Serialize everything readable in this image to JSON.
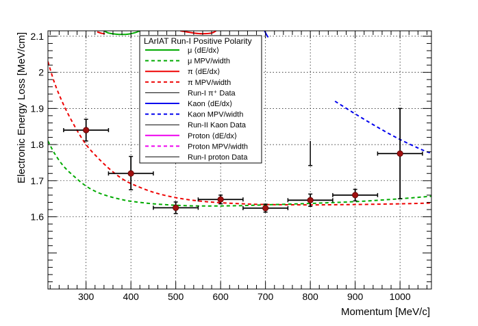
{
  "chart_data": {
    "type": "line",
    "xlabel": "Momentum [MeV/c]",
    "ylabel": "Electronic Energy Loss [MeV/cm]",
    "xlim": [
      215,
      1070
    ],
    "ylim": [
      1.4,
      2.115
    ],
    "xticks": [
      300,
      400,
      500,
      600,
      700,
      800,
      900,
      1000
    ],
    "yticks": [
      1.6,
      1.7,
      1.8,
      1.9,
      2.0,
      2.1
    ],
    "xtick_labels": [
      "300",
      "400",
      "500",
      "600",
      "700",
      "800",
      "900",
      "1000"
    ],
    "ytick_labels": [
      "1.6",
      "1.7",
      "1.8",
      "1.9",
      "2",
      "2.1"
    ],
    "grid": true,
    "legend": {
      "title": "LArIAT Run-I Positive Polarity",
      "position": "top-center",
      "entries": [
        {
          "label": "μ ⟨dE/dx⟩",
          "color": "#00aa00",
          "style": "solid"
        },
        {
          "label": "μ MPV/width",
          "color": "#00aa00",
          "style": "dashed"
        },
        {
          "label": "π ⟨dE/dx⟩",
          "color": "#ee0000",
          "style": "solid"
        },
        {
          "label": "π MPV/width",
          "color": "#ee0000",
          "style": "dashed"
        },
        {
          "label": "Run-I π⁺ Data",
          "color": "#000000",
          "style": "solid"
        },
        {
          "label": "Kaon ⟨dE/dx⟩",
          "color": "#0000ee",
          "style": "solid"
        },
        {
          "label": "Kaon MPV/width",
          "color": "#0000ee",
          "style": "dashed"
        },
        {
          "label": "Run-II Kaon Data",
          "color": "#000000",
          "style": "solid"
        },
        {
          "label": "Proton ⟨dE/dx⟩",
          "color": "#ee00ee",
          "style": "solid"
        },
        {
          "label": "Proton MPV/width",
          "color": "#ee00ee",
          "style": "dashed"
        },
        {
          "label": "Run-I proton Data",
          "color": "#000000",
          "style": "solid"
        }
      ]
    },
    "series": [
      {
        "name": "π MPV/width",
        "color": "#ee0000",
        "style": "dashed",
        "x": [
          215,
          230,
          250,
          275,
          300,
          325,
          350,
          375,
          400,
          450,
          500,
          550,
          600,
          650,
          700,
          800,
          900,
          1000,
          1070
        ],
        "y": [
          2.03,
          1.97,
          1.91,
          1.85,
          1.8,
          1.765,
          1.735,
          1.71,
          1.692,
          1.668,
          1.653,
          1.644,
          1.639,
          1.636,
          1.634,
          1.633,
          1.634,
          1.636,
          1.638
        ]
      },
      {
        "name": "μ MPV/width",
        "color": "#00aa00",
        "style": "dashed",
        "x": [
          215,
          230,
          250,
          275,
          300,
          325,
          350,
          375,
          400,
          450,
          500,
          550,
          600,
          650,
          700,
          800,
          900,
          1000,
          1070
        ],
        "y": [
          1.81,
          1.775,
          1.74,
          1.71,
          1.685,
          1.668,
          1.657,
          1.649,
          1.643,
          1.636,
          1.632,
          1.63,
          1.63,
          1.631,
          1.633,
          1.637,
          1.642,
          1.65,
          1.657
        ]
      },
      {
        "name": "μ ⟨dE/dx⟩",
        "color": "#00aa00",
        "style": "solid",
        "x": [
          340,
          350,
          365,
          380,
          395,
          410,
          420
        ],
        "y": [
          2.115,
          2.109,
          2.106,
          2.105,
          2.106,
          2.11,
          2.115
        ]
      },
      {
        "name": "π ⟨dE/dx⟩",
        "color": "#ee0000",
        "style": "solid",
        "x": [
          510,
          540,
          560,
          580,
          590
        ],
        "y": [
          2.115,
          2.109,
          2.107,
          2.109,
          2.115
        ]
      },
      {
        "name": "π ⟨dE/dx⟩ (upper-left)",
        "color": "#ee0000",
        "style": "solid",
        "x": [
          325,
          335,
          342
        ],
        "y": [
          2.112,
          2.108,
          2.107
        ]
      },
      {
        "name": "Kaon ⟨dE/dx⟩",
        "color": "#0000ee",
        "style": "solid",
        "x": [
          698,
          702,
          706
        ],
        "y": [
          2.115,
          2.105,
          2.097
        ]
      },
      {
        "name": "Kaon MPV/width",
        "color": "#0000ee",
        "style": "dashed",
        "x": [
          855,
          900,
          950,
          1000,
          1050,
          1070
        ],
        "y": [
          1.92,
          1.885,
          1.848,
          1.814,
          1.785,
          1.776
        ]
      }
    ],
    "points": [
      {
        "name": "Run-I π⁺ Data",
        "x": 300,
        "y": 1.84,
        "xerr": 50,
        "yerr_lo": 0.03,
        "yerr_hi": 0.03
      },
      {
        "name": "Run-I π⁺ Data",
        "x": 400,
        "y": 1.72,
        "xerr": 50,
        "yerr_lo": 0.045,
        "yerr_hi": 0.047
      },
      {
        "name": "Run-I π⁺ Data",
        "x": 500,
        "y": 1.625,
        "xerr": 50,
        "yerr_lo": 0.016,
        "yerr_hi": 0.016
      },
      {
        "name": "Run-I π⁺ Data",
        "x": 600,
        "y": 1.648,
        "xerr": 50,
        "yerr_lo": 0.012,
        "yerr_hi": 0.012
      },
      {
        "name": "Run-I π⁺ Data",
        "x": 700,
        "y": 1.624,
        "xerr": 50,
        "yerr_lo": 0.011,
        "yerr_hi": 0.011
      },
      {
        "name": "Run-I π⁺ Data",
        "x": 800,
        "y": 1.646,
        "xerr": 50,
        "yerr_lo": 0.017,
        "yerr_hi": 0.017
      },
      {
        "name": "Run-I π⁺ Data",
        "x": 900,
        "y": 1.66,
        "xerr": 50,
        "yerr_lo": 0.016,
        "yerr_hi": 0.016
      },
      {
        "name": "Run-I π⁺ Data",
        "x": 1000,
        "y": 1.775,
        "xerr": 50,
        "yerr_lo": 0.125,
        "yerr_hi": 0.125
      }
    ],
    "extra_errorbar": {
      "name": "Run-II Kaon Data",
      "x": 800,
      "y_lo": 1.742,
      "y_hi": 1.81
    }
  }
}
